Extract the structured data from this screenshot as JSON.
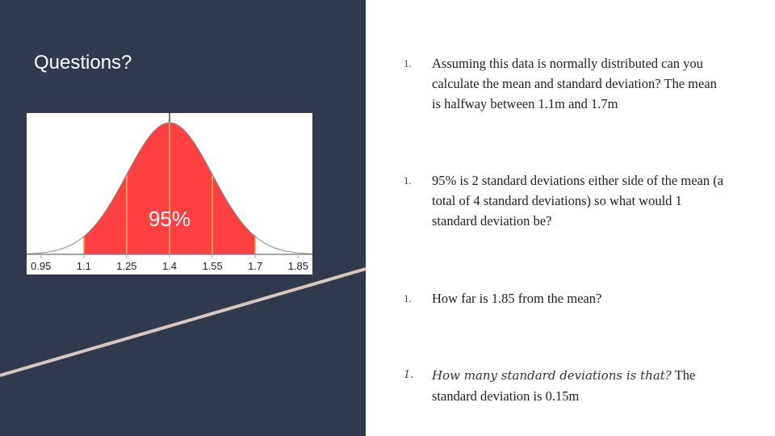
{
  "slide": {
    "title": "Questions?",
    "colors": {
      "panel": "#313a4d",
      "curve_fill": "#ff4040",
      "sd_lines": "#ffb366",
      "diagonal": "#d9c7bd"
    }
  },
  "chart_data": {
    "type": "area",
    "title": "",
    "annotation": "95%",
    "xlabel": "",
    "ylabel": "",
    "x_ticks": [
      "0.95",
      "1.1",
      "1.25",
      "1.4",
      "1.55",
      "1.7",
      "1.85"
    ],
    "mean": 1.4,
    "std_dev": 0.15,
    "shaded_range": [
      1.1,
      1.7
    ],
    "shaded_percent": 95,
    "xlim": [
      0.9,
      1.9
    ],
    "grid": false,
    "legend": "none"
  },
  "questions": [
    {
      "number": "1.",
      "text": "Assuming this data is normally distributed can you calculate the mean and standard deviation? The mean is halfway between 1.1m and 1.7m"
    },
    {
      "number": "1.",
      "text": "95% is 2 standard deviations either side of the mean (a total of 4 standard deviations) so what would 1 standard deviation be?"
    },
    {
      "number": "1.",
      "text": "How far is 1.85 from the mean?"
    },
    {
      "number": "1.",
      "italic_text": "How many standard deviations is that?",
      "text": " The standard deviation is 0.15m"
    }
  ]
}
